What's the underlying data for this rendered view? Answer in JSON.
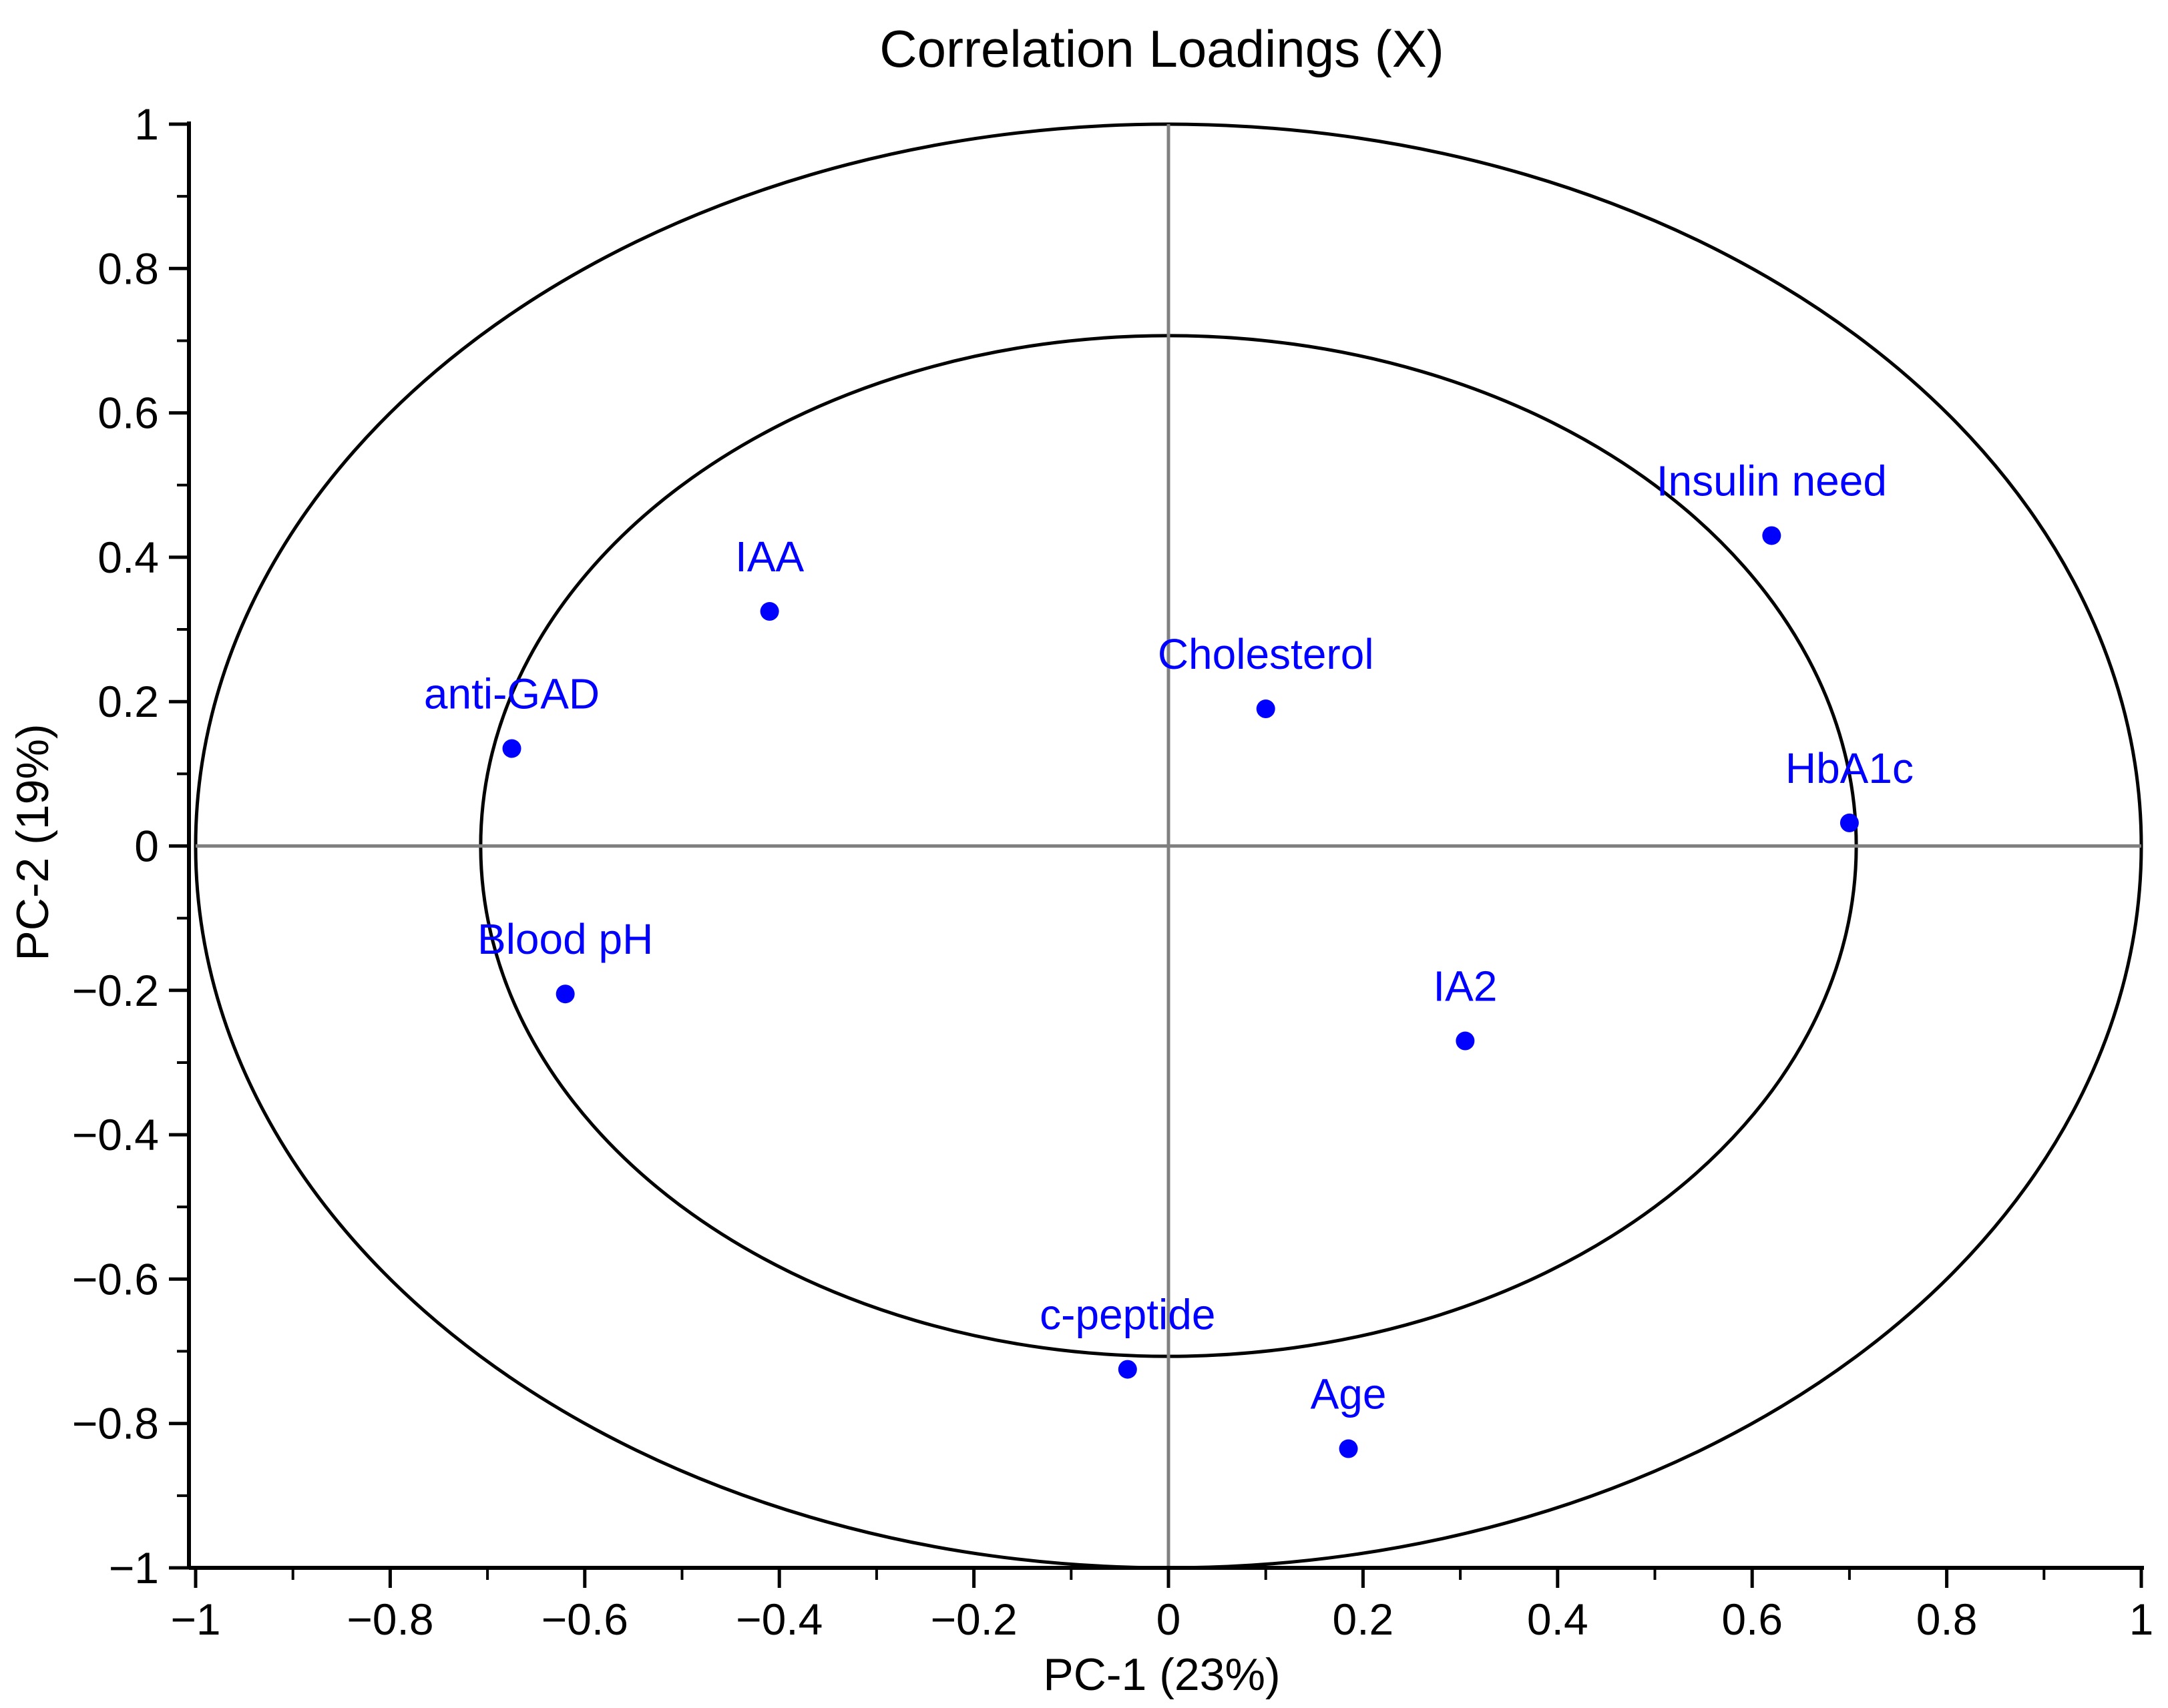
{
  "chart_data": {
    "type": "scatter",
    "title": "Correlation Loadings (X)",
    "xlabel": "PC-1 (23%)",
    "ylabel": "PC-2 (19%)",
    "xlim": [
      -1,
      1
    ],
    "ylim": [
      -1,
      1
    ],
    "x_ticks": [
      "−1",
      "−0.8",
      "−0.6",
      "−0.4",
      "−0.2",
      "0",
      "0.2",
      "0.4",
      "0.6",
      "0.8",
      "1"
    ],
    "y_ticks": [
      "1",
      "0.8",
      "0.6",
      "0.4",
      "0.2",
      "0",
      "−0.2",
      "−0.4",
      "−0.6",
      "−0.8",
      "−1"
    ],
    "circles": [
      1.0,
      0.707
    ],
    "grid": false,
    "point_color": "#0000ff",
    "axis_line_color": "#808080",
    "points": [
      {
        "label": "Insulin need",
        "x": 0.62,
        "y": 0.43
      },
      {
        "label": "IAA",
        "x": -0.41,
        "y": 0.325
      },
      {
        "label": "Cholesterol",
        "x": 0.1,
        "y": 0.19
      },
      {
        "label": "anti-GAD",
        "x": -0.675,
        "y": 0.135
      },
      {
        "label": "HbA1c",
        "x": 0.7,
        "y": 0.032
      },
      {
        "label": "Blood pH",
        "x": -0.62,
        "y": -0.205
      },
      {
        "label": "IA2",
        "x": 0.305,
        "y": -0.27
      },
      {
        "label": "c-peptide",
        "x": -0.042,
        "y": -0.725
      },
      {
        "label": "Age",
        "x": 0.185,
        "y": -0.835
      }
    ]
  }
}
